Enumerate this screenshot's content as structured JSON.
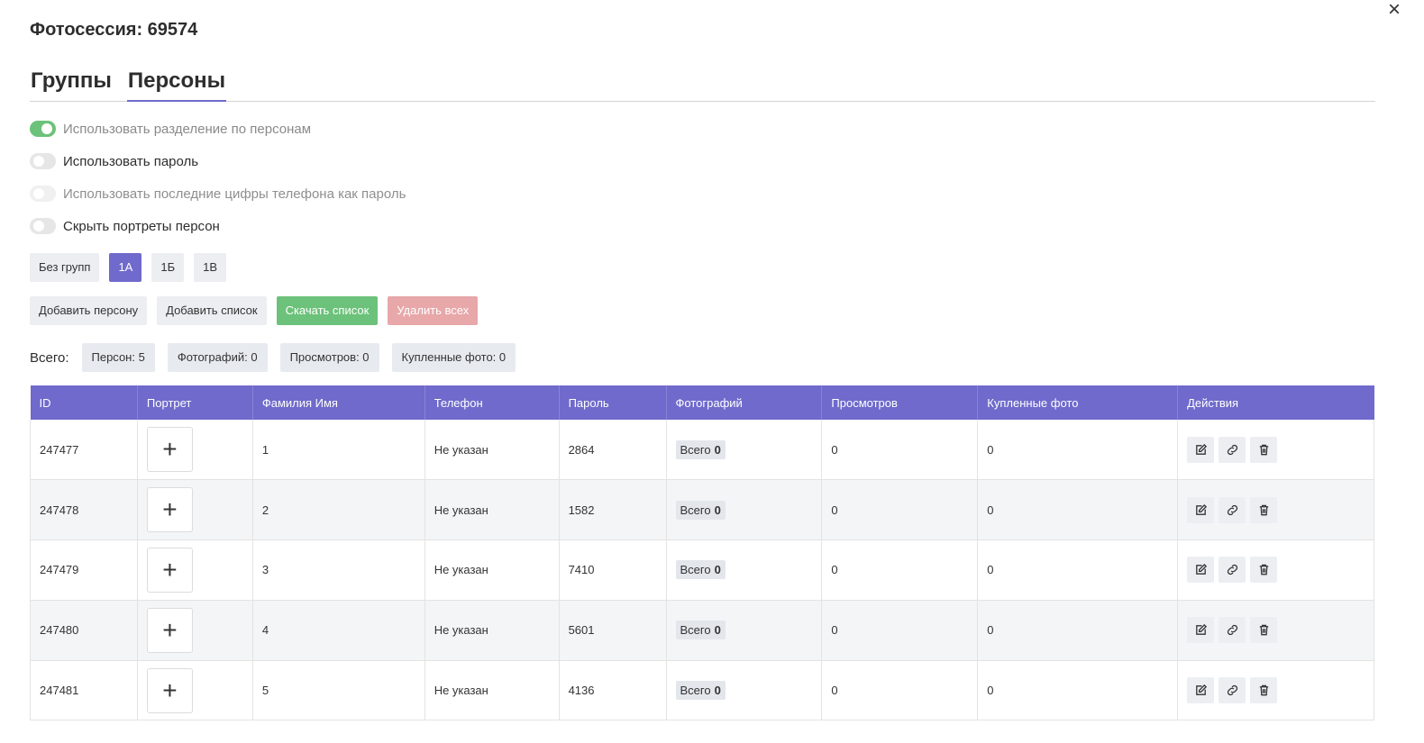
{
  "header": {
    "title": "Фотосессия: 69574",
    "close_icon": "×"
  },
  "tabs": [
    {
      "label": "Группы",
      "active": false
    },
    {
      "label": "Персоны",
      "active": true
    }
  ],
  "toggles": [
    {
      "label": "Использовать разделение по персонам",
      "state": "on"
    },
    {
      "label": "Использовать пароль",
      "state": "off"
    },
    {
      "label": "Использовать последние цифры телефона как пароль",
      "state": "disabled"
    },
    {
      "label": "Скрыть портреты персон",
      "state": "off"
    }
  ],
  "groups": [
    {
      "label": "Без групп",
      "active": false
    },
    {
      "label": "1А",
      "active": true
    },
    {
      "label": "1Б",
      "active": false
    },
    {
      "label": "1В",
      "active": false
    }
  ],
  "buttons": {
    "add_person": "Добавить персону",
    "add_list": "Добавить список",
    "download_list": "Скачать список",
    "delete_all": "Удалить всех"
  },
  "totals": {
    "label": "Всего:",
    "persons": "Персон: 5",
    "photos": "Фотографий: 0",
    "views": "Просмотров: 0",
    "purchased": "Купленные фото: 0"
  },
  "table": {
    "headers": [
      "ID",
      "Портрет",
      "Фамилия Имя",
      "Телефон",
      "Пароль",
      "Фотографий",
      "Просмотров",
      "Купленные фото",
      "Действия"
    ],
    "rows": [
      {
        "id": "247477",
        "portrait": "+",
        "name": "1",
        "phone": "Не указан",
        "password": "2864",
        "photos_label": "Всего",
        "photos": "0",
        "views": "0",
        "purchased": "0"
      },
      {
        "id": "247478",
        "portrait": "+",
        "name": "2",
        "phone": "Не указан",
        "password": "1582",
        "photos_label": "Всего",
        "photos": "0",
        "views": "0",
        "purchased": "0"
      },
      {
        "id": "247479",
        "portrait": "+",
        "name": "3",
        "phone": "Не указан",
        "password": "7410",
        "photos_label": "Всего",
        "photos": "0",
        "views": "0",
        "purchased": "0"
      },
      {
        "id": "247480",
        "portrait": "+",
        "name": "4",
        "phone": "Не указан",
        "password": "5601",
        "photos_label": "Всего",
        "photos": "0",
        "views": "0",
        "purchased": "0"
      },
      {
        "id": "247481",
        "portrait": "+",
        "name": "5",
        "phone": "Не указан",
        "password": "4136",
        "photos_label": "Всего",
        "photos": "0",
        "views": "0",
        "purchased": "0"
      }
    ]
  },
  "colors": {
    "accent": "#6f6acb",
    "success": "#6cc27a",
    "danger": "#e8a7a9",
    "chip_bg": "#eceef2"
  },
  "icons": {
    "edit": "edit-icon",
    "link": "link-icon",
    "delete": "trash-icon"
  }
}
